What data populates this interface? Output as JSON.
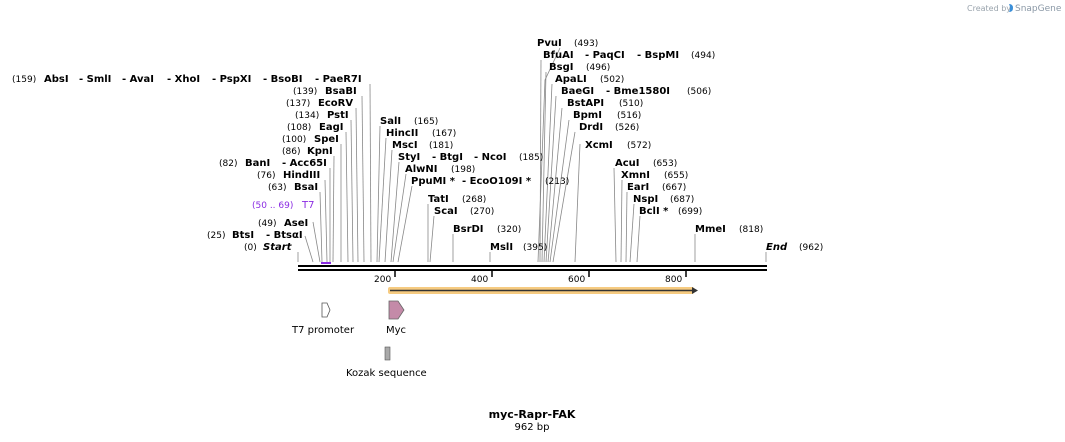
{
  "credit": {
    "prefix": "Created by",
    "brand": "SnapGene"
  },
  "plasmid": {
    "name": "myc-Rapr-FAK",
    "length": "962 bp"
  },
  "colors": {
    "accent_orf": "#f5c26b",
    "primer": "#8a2be2",
    "myc": "#c48aa8",
    "kozak": "#a9a9a9"
  },
  "sites": [
    {
      "label": "PvuI",
      "pos": "(493)"
    },
    {
      "label": "BfuAI",
      "pos": ""
    },
    {
      "label": "- PaqCI",
      "pos": ""
    },
    {
      "label": "- BspMI",
      "pos": "(494)"
    },
    {
      "label": "BsgI",
      "pos": "(496)"
    },
    {
      "label": "ApaLI",
      "pos": "(502)"
    },
    {
      "label": "BaeGI",
      "pos": ""
    },
    {
      "label": "- Bme1580I",
      "pos": "(506)"
    },
    {
      "label": "BstAPI",
      "pos": "(510)"
    },
    {
      "label": "BpmI",
      "pos": "(516)"
    },
    {
      "label": "DrdI",
      "pos": "(526)"
    },
    {
      "label": "XcmI",
      "pos": "(572)"
    },
    {
      "label": "AcuI",
      "pos": "(653)"
    },
    {
      "label": "XmnI",
      "pos": "(655)"
    },
    {
      "label": "EarI",
      "pos": "(667)"
    },
    {
      "label": "NspI",
      "pos": "(687)"
    },
    {
      "label": "BclI *",
      "pos": "(699)"
    },
    {
      "label": "MmeI",
      "pos": "(818)"
    },
    {
      "label": "End",
      "pos": "(962)"
    },
    {
      "label": "AbsI",
      "pos": "(159)"
    },
    {
      "label": "- SmlI",
      "pos": ""
    },
    {
      "label": "- AvaI",
      "pos": ""
    },
    {
      "label": "- XhoI",
      "pos": ""
    },
    {
      "label": "- PspXI",
      "pos": ""
    },
    {
      "label": "- BsoBI",
      "pos": ""
    },
    {
      "label": "- PaeR7I",
      "pos": ""
    },
    {
      "label": "BsaBI",
      "pos": "(139)"
    },
    {
      "label": "EcoRV",
      "pos": "(137)"
    },
    {
      "label": "PstI",
      "pos": "(134)"
    },
    {
      "label": "EagI",
      "pos": "(108)"
    },
    {
      "label": "SpeI",
      "pos": "(100)"
    },
    {
      "label": "KpnI",
      "pos": "(86)"
    },
    {
      "label": "BanI",
      "pos": "(82)"
    },
    {
      "label": "- Acc65I",
      "pos": ""
    },
    {
      "label": "HindIII",
      "pos": "(76)"
    },
    {
      "label": "BsaI",
      "pos": "(63)"
    },
    {
      "label": "T7",
      "pos": "(50 .. 69)"
    },
    {
      "label": "AseI",
      "pos": "(49)"
    },
    {
      "label": "BtsI",
      "pos": "(25)"
    },
    {
      "label": "- BtsαI",
      "pos": ""
    },
    {
      "label": "Start",
      "pos": "(0)"
    },
    {
      "label": "SalI",
      "pos": "(165)"
    },
    {
      "label": "HincII",
      "pos": "(167)"
    },
    {
      "label": "MscI",
      "pos": "(181)"
    },
    {
      "label": "StyI",
      "pos": ""
    },
    {
      "label": "- BtgI",
      "pos": ""
    },
    {
      "label": "- NcoI",
      "pos": "(185)"
    },
    {
      "label": "AlwNI",
      "pos": "(198)"
    },
    {
      "label": "PpuMI *",
      "pos": ""
    },
    {
      "label": "- EcoO109I *",
      "pos": "(213)"
    },
    {
      "label": "TatI",
      "pos": "(268)"
    },
    {
      "label": "ScaI",
      "pos": "(270)"
    },
    {
      "label": "BsrDI",
      "pos": "(320)"
    },
    {
      "label": "MslI",
      "pos": "(395)"
    }
  ],
  "ruler": {
    "ticks": [
      "200",
      "400",
      "600",
      "800"
    ]
  },
  "features": {
    "t7_promoter": "T7 promoter",
    "myc": "Myc",
    "kozak": "Kozak sequence"
  }
}
